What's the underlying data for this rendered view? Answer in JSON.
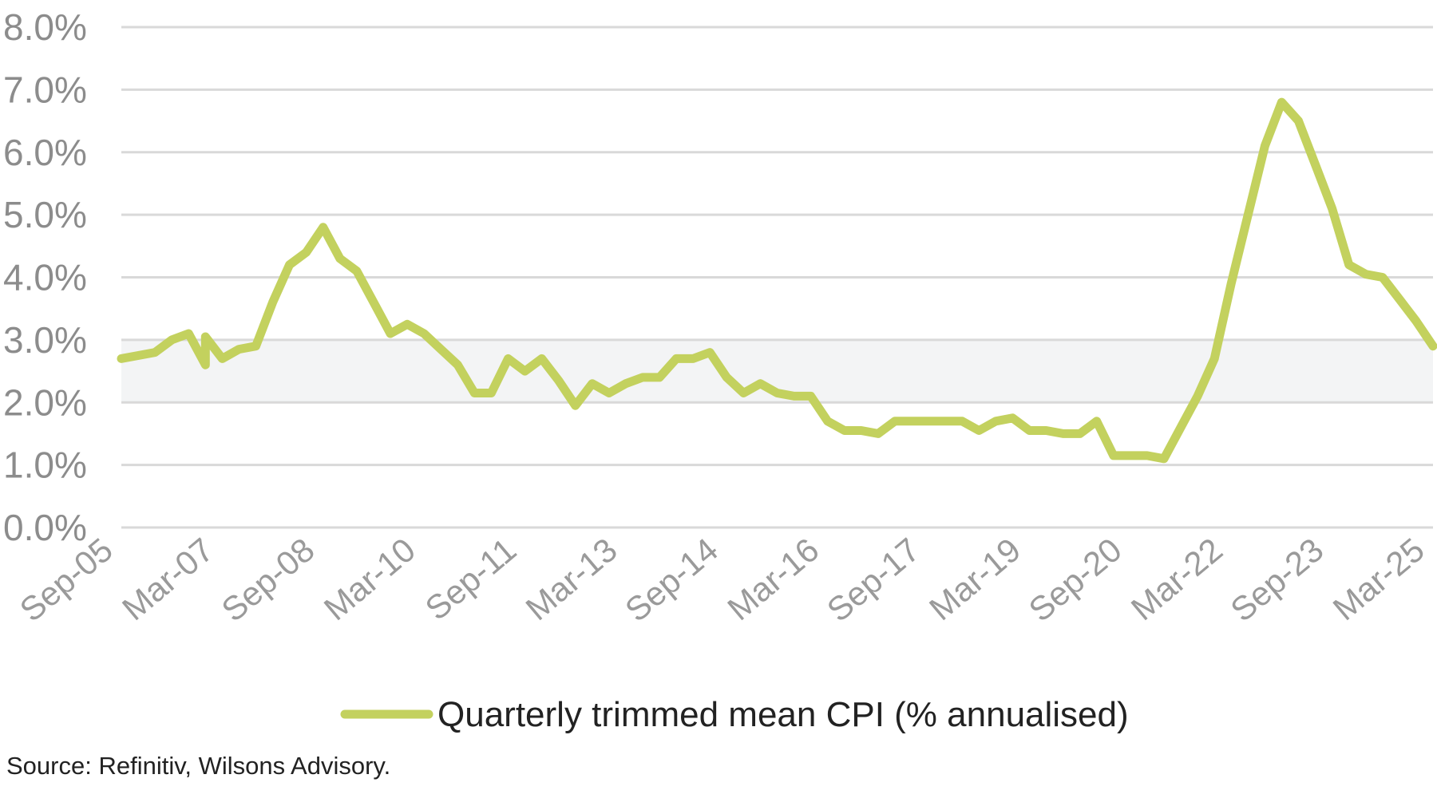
{
  "chart_data": {
    "type": "line",
    "title": "",
    "xlabel": "",
    "ylabel": "",
    "ylim": [
      0,
      8
    ],
    "yticks": [
      0,
      1,
      2,
      3,
      4,
      5,
      6,
      7,
      8
    ],
    "ytick_labels": [
      "0.0%",
      "1.0%",
      "2.0%",
      "3.0%",
      "4.0%",
      "5.0%",
      "6.0%",
      "7.0%",
      "8.0%"
    ],
    "xtick_labels": [
      "Sep-05",
      "Mar-07",
      "Sep-08",
      "Mar-10",
      "Sep-11",
      "Mar-13",
      "Sep-14",
      "Mar-16",
      "Sep-17",
      "Mar-19",
      "Sep-20",
      "Mar-22",
      "Sep-23",
      "Mar-25"
    ],
    "grid": true,
    "target_band": [
      2,
      3
    ],
    "legend": "bottom-center",
    "series": [
      {
        "name": "Quarterly trimmed mean CPI (% annualised)",
        "color": "#c3d15e",
        "points": [
          [
            "Sep-05",
            2.7
          ],
          [
            "Dec-05",
            2.75
          ],
          [
            "Mar-06",
            2.8
          ],
          [
            "Jun-06",
            3.0
          ],
          [
            "Sep-06",
            3.1
          ],
          [
            "Dec-06",
            2.6
          ],
          [
            "Dec-06",
            3.05
          ],
          [
            "Mar-07",
            2.7
          ],
          [
            "Jun-07",
            2.85
          ],
          [
            "Sep-07",
            2.9
          ],
          [
            "Dec-07",
            3.6
          ],
          [
            "Mar-08",
            4.2
          ],
          [
            "Jun-08",
            4.4
          ],
          [
            "Sep-08",
            4.8
          ],
          [
            "Dec-08",
            4.3
          ],
          [
            "Mar-09",
            4.1
          ],
          [
            "Jun-09",
            3.6
          ],
          [
            "Sep-09",
            3.1
          ],
          [
            "Dec-09",
            3.25
          ],
          [
            "Mar-10",
            3.1
          ],
          [
            "Jun-10",
            2.85
          ],
          [
            "Sep-10",
            2.6
          ],
          [
            "Dec-10",
            2.15
          ],
          [
            "Mar-11",
            2.15
          ],
          [
            "Jun-11",
            2.7
          ],
          [
            "Sep-11",
            2.5
          ],
          [
            "Dec-11",
            2.7
          ],
          [
            "Mar-12",
            2.35
          ],
          [
            "Jun-12",
            1.95
          ],
          [
            "Sep-12",
            2.3
          ],
          [
            "Dec-12",
            2.15
          ],
          [
            "Mar-13",
            2.3
          ],
          [
            "Jun-13",
            2.4
          ],
          [
            "Sep-13",
            2.4
          ],
          [
            "Dec-13",
            2.7
          ],
          [
            "Mar-14",
            2.7
          ],
          [
            "Jun-14",
            2.8
          ],
          [
            "Sep-14",
            2.4
          ],
          [
            "Dec-14",
            2.15
          ],
          [
            "Mar-15",
            2.3
          ],
          [
            "Jun-15",
            2.15
          ],
          [
            "Sep-15",
            2.1
          ],
          [
            "Dec-15",
            2.1
          ],
          [
            "Mar-16",
            1.7
          ],
          [
            "Jun-16",
            1.55
          ],
          [
            "Sep-16",
            1.55
          ],
          [
            "Dec-16",
            1.5
          ],
          [
            "Mar-17",
            1.7
          ],
          [
            "Jun-17",
            1.7
          ],
          [
            "Sep-17",
            1.7
          ],
          [
            "Dec-17",
            1.7
          ],
          [
            "Mar-18",
            1.7
          ],
          [
            "Jun-18",
            1.55
          ],
          [
            "Sep-18",
            1.7
          ],
          [
            "Dec-18",
            1.75
          ],
          [
            "Mar-19",
            1.55
          ],
          [
            "Jun-19",
            1.55
          ],
          [
            "Sep-19",
            1.5
          ],
          [
            "Dec-19",
            1.5
          ],
          [
            "Mar-20",
            1.7
          ],
          [
            "Jun-20",
            1.15
          ],
          [
            "Sep-20",
            1.15
          ],
          [
            "Dec-20",
            1.15
          ],
          [
            "Mar-21",
            1.1
          ],
          [
            "Jun-21",
            1.6
          ],
          [
            "Sep-21",
            2.1
          ],
          [
            "Dec-21",
            2.7
          ],
          [
            "Mar-22",
            3.9
          ],
          [
            "Jun-22",
            5.0
          ],
          [
            "Sep-22",
            6.1
          ],
          [
            "Dec-22",
            6.8
          ],
          [
            "Mar-23",
            6.5
          ],
          [
            "Jun-23",
            5.8
          ],
          [
            "Sep-23",
            5.1
          ],
          [
            "Dec-23",
            4.2
          ],
          [
            "Mar-24",
            4.05
          ],
          [
            "Jun-24",
            4.0
          ],
          [
            "Sep-24",
            3.65
          ],
          [
            "Dec-24",
            3.3
          ],
          [
            "Mar-25",
            2.9
          ]
        ]
      }
    ]
  },
  "source_note": "Source: Refinitiv, Wilsons Advisory.",
  "colors": {
    "line": "#c3d15e",
    "band": "#f3f4f5",
    "grid": "#d9d9d9",
    "tick_text": "#8c8c8c"
  }
}
